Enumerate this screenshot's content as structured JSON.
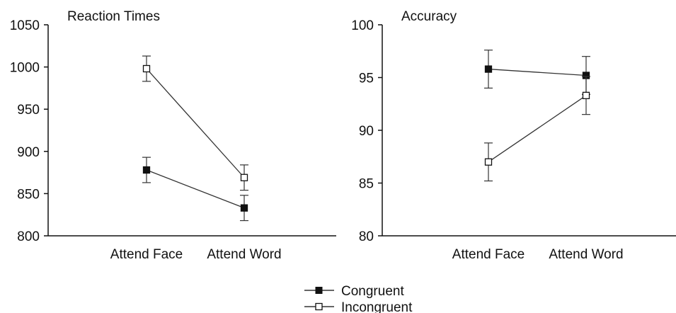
{
  "chart_data": [
    {
      "type": "line",
      "title": "Reaction Times",
      "categories": [
        "Attend Face",
        "Attend Word"
      ],
      "ylim": [
        800,
        1050
      ],
      "yticks": [
        800,
        850,
        900,
        950,
        1000,
        1050
      ],
      "grid": false,
      "series": [
        {
          "name": "Congruent",
          "marker": "filled-square",
          "values": [
            878,
            833
          ],
          "errors": [
            15,
            15
          ]
        },
        {
          "name": "Incongruent",
          "marker": "open-square",
          "values": [
            998,
            869
          ],
          "errors": [
            15,
            15
          ]
        }
      ]
    },
    {
      "type": "line",
      "title": "Accuracy",
      "categories": [
        "Attend Face",
        "Attend Word"
      ],
      "ylim": [
        80,
        100
      ],
      "yticks": [
        80,
        85,
        90,
        95,
        100
      ],
      "grid": false,
      "series": [
        {
          "name": "Congruent",
          "marker": "filled-square",
          "values": [
            95.8,
            95.2
          ],
          "errors": [
            1.8,
            1.8
          ]
        },
        {
          "name": "Incongruent",
          "marker": "open-square",
          "values": [
            87.0,
            93.3
          ],
          "errors": [
            1.8,
            1.8
          ]
        }
      ]
    }
  ],
  "legend": {
    "placement": "bottom-center",
    "items": [
      {
        "label": "Congruent",
        "marker": "filled-square"
      },
      {
        "label": "Incongruent",
        "marker": "open-square"
      }
    ]
  },
  "colors": {
    "ink": "#111111",
    "line": "#333333",
    "open_fill": "#ffffff"
  }
}
